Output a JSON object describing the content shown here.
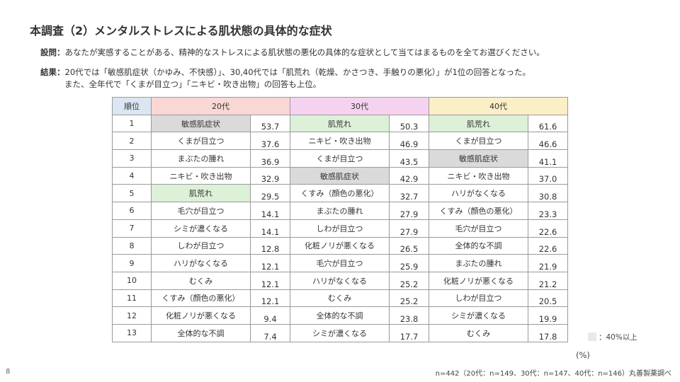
{
  "title": "本調査（2）メンタルストレスによる肌状態の具体的な症状",
  "question": {
    "label": "設問：",
    "text": "あなたが実感することがある、精神的なストレスによる肌状態の悪化の具体的な症状として当てはまるものを全てお選びください。"
  },
  "result": {
    "label": "結果：",
    "line1": "20代では「敏感肌症状（かゆみ、不快感）」、30,40代では「肌荒れ（乾燥、かさつき、手触りの悪化）」が1位の回答となった。",
    "line2": "また、全年代で「くまが目立つ」「ニキビ・吹き出物」の回答も上位。"
  },
  "table": {
    "header": {
      "rank": "順位",
      "g20": "20代",
      "g30": "30代",
      "g40": "40代"
    },
    "rows": [
      {
        "rank": "1",
        "i20": "敏感肌症状",
        "v20": "53.7",
        "i30": "肌荒れ",
        "v30": "50.3",
        "i40": "肌荒れ",
        "v40": "61.6"
      },
      {
        "rank": "2",
        "i20": "くまが目立つ",
        "v20": "37.6",
        "i30": "ニキビ・吹き出物",
        "v30": "46.9",
        "i40": "くまが目立つ",
        "v40": "46.6"
      },
      {
        "rank": "3",
        "i20": "まぶたの腫れ",
        "v20": "36.9",
        "i30": "くまが目立つ",
        "v30": "43.5",
        "i40": "敏感肌症状",
        "v40": "41.1"
      },
      {
        "rank": "4",
        "i20": "ニキビ・吹き出物",
        "v20": "32.9",
        "i30": "敏感肌症状",
        "v30": "42.9",
        "i40": "ニキビ・吹き出物",
        "v40": "37.0"
      },
      {
        "rank": "5",
        "i20": "肌荒れ",
        "v20": "29.5",
        "i30": "くすみ（顔色の悪化）",
        "v30": "32.7",
        "i40": "ハリがなくなる",
        "v40": "30.8"
      },
      {
        "rank": "6",
        "i20": "毛穴が目立つ",
        "v20": "14.1",
        "i30": "まぶたの腫れ",
        "v30": "27.9",
        "i40": "くすみ（顔色の悪化）",
        "v40": "23.3"
      },
      {
        "rank": "7",
        "i20": "シミが濃くなる",
        "v20": "14.1",
        "i30": "しわが目立つ",
        "v30": "27.9",
        "i40": "毛穴が目立つ",
        "v40": "22.6"
      },
      {
        "rank": "8",
        "i20": "しわが目立つ",
        "v20": "12.8",
        "i30": "化粧ノリが悪くなる",
        "v30": "26.5",
        "i40": "全体的な不調",
        "v40": "22.6"
      },
      {
        "rank": "9",
        "i20": "ハリがなくなる",
        "v20": "12.1",
        "i30": "毛穴が目立つ",
        "v30": "25.9",
        "i40": "まぶたの腫れ",
        "v40": "21.9"
      },
      {
        "rank": "10",
        "i20": "むくみ",
        "v20": "12.1",
        "i30": "ハリがなくなる",
        "v30": "25.2",
        "i40": "化粧ノリが悪くなる",
        "v40": "21.2"
      },
      {
        "rank": "11",
        "i20": "くすみ（顔色の悪化）",
        "v20": "12.1",
        "i30": "むくみ",
        "v30": "25.2",
        "i40": "しわが目立つ",
        "v40": "20.5"
      },
      {
        "rank": "12",
        "i20": "化粧ノリが悪くなる",
        "v20": "9.4",
        "i30": "全体的な不調",
        "v30": "23.8",
        "i40": "シミが濃くなる",
        "v40": "19.9"
      },
      {
        "rank": "13",
        "i20": "全体的な不調",
        "v20": "7.4",
        "i30": "シミが濃くなる",
        "v30": "17.7",
        "i40": "むくみ",
        "v40": "17.8"
      }
    ]
  },
  "legend": {
    "text": "：40%以上",
    "swatch_color": "#e8e8e8"
  },
  "unit": "(%)",
  "page_number": "8",
  "footnote": "n=442（20代：n=149、30代：n=147、40代：n=146）丸善製薬調べ",
  "colors": {
    "header_rank": "#dce6f2",
    "header_20": "#f8d7d4",
    "header_30": "#f5d3f0",
    "header_40": "#fbefc6",
    "highlight_gray": "#dadada",
    "highlight_green": "#ddf0d8"
  }
}
